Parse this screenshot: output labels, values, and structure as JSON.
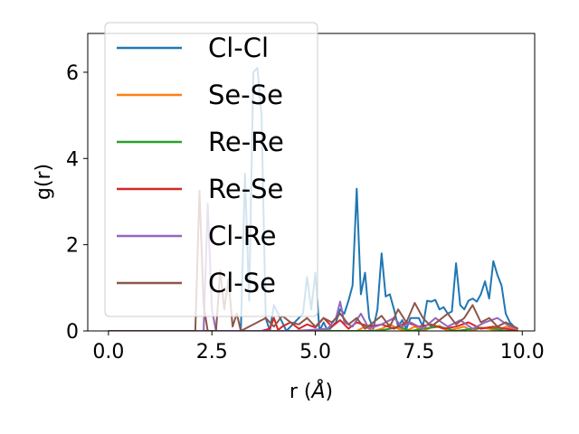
{
  "chart_data": {
    "type": "line",
    "xlabel_main": "r (",
    "xlabel_unit": "Å",
    "xlabel_close": ")",
    "ylabel": "g(r)",
    "xlim": [
      -0.5,
      10.3
    ],
    "ylim": [
      0,
      6.9
    ],
    "xticks": [
      0.0,
      2.5,
      5.0,
      7.5,
      10.0
    ],
    "xtick_labels": [
      "0.0",
      "2.5",
      "5.0",
      "7.5",
      "10.0"
    ],
    "yticks": [
      0,
      2,
      4,
      6
    ],
    "ytick_labels": [
      "0",
      "2",
      "4",
      "6"
    ],
    "grid": false,
    "legend_position": "upper-left",
    "series": [
      {
        "name": "Cl-Cl",
        "color": "#1f77b4",
        "x": [
          0,
          3.0,
          3.2,
          3.3,
          3.4,
          3.5,
          3.6,
          3.7,
          3.8,
          3.9,
          4.0,
          4.3,
          4.7,
          4.8,
          4.9,
          5.0,
          5.1,
          5.2,
          5.3,
          5.5,
          5.6,
          5.7,
          5.8,
          5.9,
          6.0,
          6.1,
          6.2,
          6.3,
          6.4,
          6.5,
          6.6,
          6.7,
          6.8,
          6.9,
          7.0,
          7.1,
          7.2,
          7.3,
          7.5,
          7.6,
          7.7,
          7.8,
          7.9,
          8.0,
          8.1,
          8.2,
          8.3,
          8.4,
          8.5,
          8.6,
          8.7,
          8.8,
          8.9,
          9.0,
          9.1,
          9.2,
          9.3,
          9.4,
          9.5,
          9.6,
          9.7,
          9.8,
          9.9
        ],
        "y": [
          0,
          0,
          0,
          3.65,
          0.7,
          6.0,
          6.1,
          5.0,
          0.3,
          0,
          0.6,
          0,
          0.4,
          1.25,
          0.5,
          1.35,
          0,
          0.2,
          0,
          0.2,
          0.5,
          0.4,
          0.7,
          1.05,
          3.3,
          0.85,
          1.35,
          0.3,
          0.05,
          0.5,
          1.8,
          0.8,
          0.85,
          0.5,
          0.1,
          0.25,
          0.05,
          0.3,
          0.3,
          0.1,
          0.7,
          0.68,
          0.72,
          0.5,
          0.55,
          0.4,
          0.45,
          1.57,
          0.6,
          0.5,
          0.7,
          0.75,
          0.68,
          0.85,
          1.15,
          0.75,
          1.62,
          1.3,
          1.05,
          0.4,
          0.2,
          0.1,
          0.05
        ]
      },
      {
        "name": "Se-Se",
        "color": "#ff7f0e",
        "x": [
          0,
          5.0,
          5.2,
          5.4,
          6.0,
          6.2,
          6.4,
          6.6,
          6.8,
          7.0,
          7.2,
          7.4,
          7.6,
          7.8,
          8.0,
          8.2,
          8.4,
          8.6,
          8.8,
          9.0,
          9.2,
          9.4,
          9.6,
          9.9
        ],
        "y": [
          0,
          0,
          0.05,
          0,
          0,
          0.1,
          0,
          0.05,
          0.15,
          0.05,
          0,
          0.1,
          0,
          0.08,
          0.12,
          0,
          0.05,
          0.1,
          0,
          0.08,
          0.05,
          0,
          0.1,
          0
        ]
      },
      {
        "name": "Re-Re",
        "color": "#2ca02c",
        "x": [
          0,
          6.5,
          6.8,
          7.0,
          7.3,
          7.6,
          8.0,
          8.4,
          8.8,
          9.2,
          9.6,
          9.9
        ],
        "y": [
          0,
          0,
          0.05,
          0.1,
          0,
          0.05,
          0.1,
          0,
          0.05,
          0.08,
          0,
          0
        ]
      },
      {
        "name": "Re-Se",
        "color": "#d62728",
        "x": [
          0,
          3.7,
          3.9,
          4.0,
          4.1,
          4.2,
          4.4,
          4.6,
          4.8,
          5.0,
          5.2,
          5.4,
          5.6,
          5.8,
          6.0,
          6.3,
          6.6,
          6.9,
          7.2,
          7.5,
          7.8,
          8.1,
          8.4,
          8.7,
          9.0,
          9.3,
          9.6,
          9.9
        ],
        "y": [
          0,
          0,
          0.05,
          0.3,
          0.02,
          0.1,
          0.2,
          0.05,
          0.15,
          0.08,
          0.3,
          0.1,
          0.25,
          0.05,
          0.2,
          0.1,
          0.15,
          0.05,
          0.2,
          0.1,
          0.15,
          0.05,
          0.1,
          0.2,
          0.05,
          0.1,
          0.05,
          0
        ]
      },
      {
        "name": "Cl-Re",
        "color": "#9467bd",
        "x": [
          0,
          2.3,
          2.4,
          2.5,
          2.6,
          3.0,
          4.5,
          5.3,
          5.5,
          5.6,
          5.7,
          5.9,
          6.1,
          6.3,
          6.6,
          6.9,
          7.1,
          7.3,
          7.6,
          7.9,
          8.2,
          8.5,
          8.8,
          9.1,
          9.4,
          9.7,
          9.9
        ],
        "y": [
          0,
          0,
          2.95,
          0.5,
          0,
          0,
          0,
          0.05,
          0.3,
          0.68,
          0.2,
          0.1,
          0.4,
          0.05,
          0.15,
          0.3,
          0.1,
          0.2,
          0.05,
          0.3,
          0.1,
          0.25,
          0.05,
          0.2,
          0.3,
          0.1,
          0.05
        ]
      },
      {
        "name": "Cl-Se",
        "color": "#8c564b",
        "x": [
          0,
          2.1,
          2.2,
          2.3,
          2.4,
          2.6,
          2.7,
          2.8,
          2.9,
          3.0,
          3.1,
          3.2,
          3.6,
          3.8,
          4.0,
          4.2,
          4.4,
          4.6,
          4.8,
          5.0,
          5.2,
          5.4,
          5.6,
          5.8,
          6.0,
          6.2,
          6.4,
          6.6,
          6.8,
          7.0,
          7.2,
          7.4,
          7.6,
          7.8,
          8.0,
          8.2,
          8.4,
          8.6,
          8.8,
          9.0,
          9.2,
          9.4,
          9.6,
          9.8,
          9.9
        ],
        "y": [
          0,
          0,
          3.25,
          0.6,
          0,
          0,
          1.4,
          0.5,
          1.2,
          0.1,
          0.4,
          0,
          0.2,
          0.3,
          0.1,
          0.35,
          0.2,
          0.15,
          0.3,
          0.1,
          0.3,
          0.2,
          0.4,
          0.15,
          0.3,
          0.05,
          0.2,
          0.35,
          0.1,
          0.5,
          0.2,
          0.65,
          0.3,
          0.1,
          0.25,
          0.4,
          0.15,
          0.3,
          0.6,
          0.2,
          0.3,
          0.1,
          0.2,
          0.1,
          0.05
        ]
      }
    ]
  }
}
